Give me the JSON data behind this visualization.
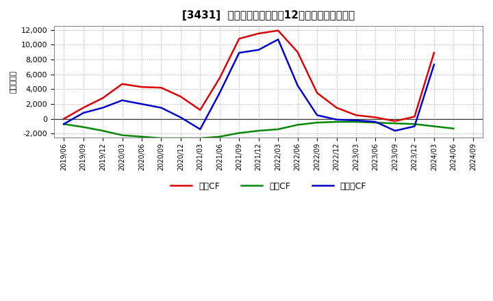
{
  "title": "[3431]  キャッシュフローの12か月移動合計の推移",
  "ylabel": "（百万円）",
  "background_color": "#ffffff",
  "plot_bg_color": "#ffffff",
  "grid_color": "#aaaaaa",
  "ylim": [
    -2500,
    12500
  ],
  "yticks": [
    -2000,
    0,
    2000,
    4000,
    6000,
    8000,
    10000,
    12000
  ],
  "labels": [
    "営業CF",
    "投資CF",
    "フリーCF"
  ],
  "colors": [
    "#dd0000",
    "#008800",
    "#0000cc"
  ],
  "dates": [
    "2019/06",
    "2019/09",
    "2019/12",
    "2020/03",
    "2020/06",
    "2020/09",
    "2020/12",
    "2021/03",
    "2021/06",
    "2021/09",
    "2021/12",
    "2022/03",
    "2022/06",
    "2022/09",
    "2022/12",
    "2023/03",
    "2023/06",
    "2023/09",
    "2023/12",
    "2024/03",
    "2024/06",
    "2024/09"
  ],
  "operating_cf": [
    0,
    1500,
    2800,
    4700,
    4300,
    4200,
    3000,
    1200,
    5500,
    10800,
    11500,
    11900,
    9000,
    3500,
    1500,
    500,
    200,
    -300,
    300,
    8900,
    null,
    null
  ],
  "investing_cf": [
    -700,
    -1100,
    -1600,
    -2200,
    -2400,
    -2600,
    -2600,
    -2600,
    -2400,
    -1900,
    -1600,
    -1400,
    -800,
    -500,
    -400,
    -400,
    -500,
    -600,
    -700,
    -1000,
    -1300,
    null
  ],
  "free_cf": [
    -700,
    800,
    1500,
    2500,
    2000,
    1500,
    200,
    -1400,
    3500,
    8900,
    9300,
    10700,
    4500,
    500,
    -100,
    -200,
    -400,
    -1600,
    -1000,
    7300,
    null,
    null
  ]
}
